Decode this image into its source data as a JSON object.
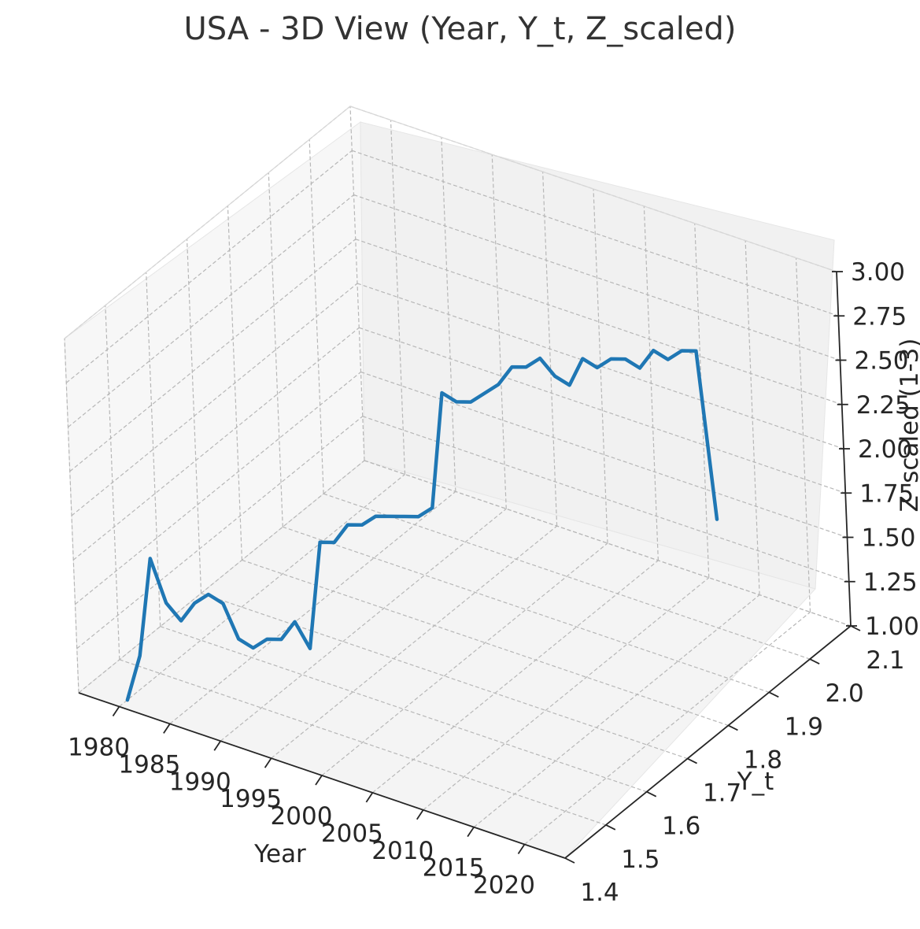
{
  "chart_data": {
    "type": "line",
    "title": "USA - 3D View (Year, Y_t, Z_scaled)",
    "xlabel": "Year",
    "ylabel": "Y_t",
    "zlabel": "Z_scaled (1-3)",
    "xlim": [
      1976,
      2024
    ],
    "ylim": [
      1.4,
      2.1
    ],
    "zlim": [
      1,
      3
    ],
    "xticks": [
      "1980",
      "1985",
      "1990",
      "1995",
      "2000",
      "2005",
      "2010",
      "2015",
      "2020"
    ],
    "yticks": [
      "1.4",
      "1.5",
      "1.6",
      "1.7",
      "1.8",
      "1.9",
      "2.0",
      "2.1"
    ],
    "zticks": [
      "1.00",
      "1.25",
      "1.50",
      "1.75",
      "2.00",
      "2.25",
      "2.50",
      "2.75",
      "3.00"
    ],
    "grid": true,
    "line_color": "#1f77b4",
    "series": [
      {
        "x": [
          1980,
          1981,
          1982,
          1983,
          1984,
          1985,
          1986,
          1987,
          1988,
          1989,
          1990,
          1991,
          1992,
          1993,
          1994,
          1995,
          1996,
          1997,
          1998,
          1999,
          2000,
          2001,
          2002,
          2003,
          2004,
          2005,
          2006,
          2007,
          2008,
          2009,
          2010,
          2011,
          2012,
          2013,
          2014,
          2015,
          2016,
          2017,
          2018,
          2019,
          2020,
          2021,
          2022
        ],
        "y": [
          1.42,
          1.43,
          1.44,
          1.45,
          1.46,
          1.47,
          1.48,
          1.49,
          1.5,
          1.51,
          1.52,
          1.53,
          1.54,
          1.55,
          1.56,
          1.57,
          1.58,
          1.59,
          1.6,
          1.61,
          1.62,
          1.63,
          1.64,
          1.65,
          1.66,
          1.67,
          1.68,
          1.69,
          1.7,
          1.71,
          1.72,
          1.73,
          1.74,
          1.75,
          1.76,
          1.77,
          1.78,
          1.79,
          1.8,
          1.81,
          1.82,
          1.83,
          1.84
        ],
        "z": [
          1.0,
          1.25,
          1.8,
          1.55,
          1.45,
          1.55,
          1.6,
          1.55,
          1.35,
          1.3,
          1.35,
          1.35,
          1.45,
          1.3,
          1.9,
          1.9,
          2.0,
          2.0,
          2.05,
          2.05,
          2.05,
          2.05,
          2.1,
          2.75,
          2.7,
          2.7,
          2.75,
          2.8,
          2.9,
          2.9,
          2.95,
          2.85,
          2.8,
          2.95,
          2.9,
          2.95,
          2.95,
          2.9,
          3.0,
          2.95,
          3.0,
          3.0,
          2.05
        ]
      }
    ]
  }
}
